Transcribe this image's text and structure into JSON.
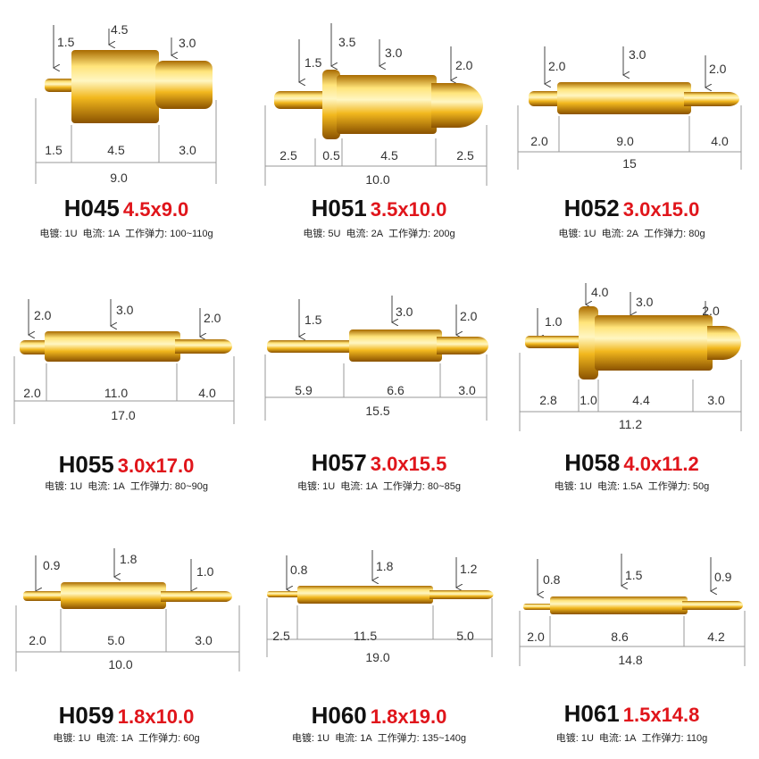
{
  "products": [
    {
      "model": "H045",
      "size": "4.5x9.0",
      "plating": "电镀: 1U",
      "current": "电流: 1A",
      "force": "工作弹力: 100~110g",
      "callouts": [
        "1.5",
        "4.5",
        "3.0"
      ],
      "segments": [
        "1.5",
        "4.5",
        "3.0"
      ],
      "total": "9.0"
    },
    {
      "model": "H051",
      "size": "3.5x10.0",
      "plating": "电镀: 5U",
      "current": "电流: 2A",
      "force": "工作弹力: 200g",
      "callouts": [
        "1.5",
        "3.5",
        "3.0",
        "2.0"
      ],
      "segments": [
        "2.5",
        "0.5",
        "4.5",
        "2.5"
      ],
      "total": "10.0"
    },
    {
      "model": "H052",
      "size": "3.0x15.0",
      "plating": "电镀: 1U",
      "current": "电流: 2A",
      "force": "工作弹力: 80g",
      "callouts": [
        "2.0",
        "3.0",
        "2.0"
      ],
      "segments": [
        "2.0",
        "9.0",
        "4.0"
      ],
      "total": "15"
    },
    {
      "model": "H055",
      "size": "3.0x17.0",
      "plating": "电镀: 1U",
      "current": "电流: 1A",
      "force": "工作弹力: 80~90g",
      "callouts": [
        "2.0",
        "3.0",
        "2.0"
      ],
      "segments": [
        "2.0",
        "11.0",
        "4.0"
      ],
      "total": "17.0"
    },
    {
      "model": "H057",
      "size": "3.0x15.5",
      "plating": "电镀: 1U",
      "current": "电流: 1A",
      "force": "工作弹力: 80~85g",
      "callouts": [
        "1.5",
        "3.0",
        "2.0"
      ],
      "segments": [
        "5.9",
        "6.6",
        "3.0"
      ],
      "total": "15.5"
    },
    {
      "model": "H058",
      "size": "4.0x11.2",
      "plating": "电镀: 1U",
      "current": "电流: 1.5A",
      "force": "工作弹力: 50g",
      "callouts": [
        "1.0",
        "4.0",
        "3.0",
        "2.0"
      ],
      "segments": [
        "2.8",
        "1.0",
        "4.4",
        "3.0"
      ],
      "total": "11.2"
    },
    {
      "model": "H059",
      "size": "1.8x10.0",
      "plating": "电镀: 1U",
      "current": "电流: 1A",
      "force": "工作弹力: 60g",
      "callouts": [
        "0.9",
        "1.8",
        "1.0"
      ],
      "segments": [
        "2.0",
        "5.0",
        "3.0"
      ],
      "total": "10.0"
    },
    {
      "model": "H060",
      "size": "1.8x19.0",
      "plating": "电镀: 1U",
      "current": "电流: 1A",
      "force": "工作弹力: 135~140g",
      "callouts": [
        "0.8",
        "1.8",
        "1.2"
      ],
      "segments": [
        "2.5",
        "11.5",
        "5.0"
      ],
      "total": "19.0"
    },
    {
      "model": "H061",
      "size": "1.5x14.8",
      "plating": "电镀: 1U",
      "current": "电流: 1A",
      "force": "工作弹力: 110g",
      "callouts": [
        "0.8",
        "1.5",
        "0.9"
      ],
      "segments": [
        "2.0",
        "8.6",
        "4.2"
      ],
      "total": "14.8"
    }
  ],
  "colors": {
    "gold_light": "#fff1a8",
    "gold_mid": "#f2b81e",
    "gold_dark": "#a86a00",
    "title_size": "#e0151b"
  }
}
